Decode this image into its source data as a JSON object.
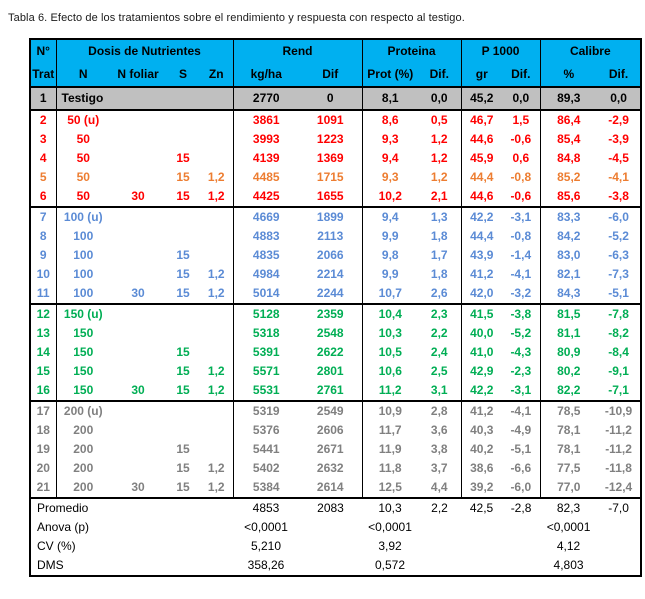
{
  "title": "Tabla 6. Efecto de los tratamientos sobre el rendimiento y respuesta con respecto al testigo.",
  "colors": {
    "header_bg": "#00B0F0",
    "header_text": "#000000",
    "border": "#000000",
    "testigo_bg": "#C0C0C0",
    "red": "#FF0000",
    "orange": "#ED7D31",
    "blue": "#5B8BD5",
    "green": "#00AE54",
    "gray": "#808080",
    "black": "#000000"
  },
  "header": {
    "col1_line1": "N°",
    "col1_line2": "Trat",
    "groups": [
      {
        "label": "Dosis de Nutrientes",
        "subs": [
          "N",
          "N foliar",
          "S",
          "Zn"
        ]
      },
      {
        "label": "Rend",
        "subs": [
          "kg/ha",
          "Dif"
        ]
      },
      {
        "label": "Proteina",
        "subs": [
          "Prot (%)",
          "Dif."
        ]
      },
      {
        "label": "P 1000",
        "subs": [
          "gr",
          "Dif."
        ]
      },
      {
        "label": "Calibre",
        "subs": [
          "%",
          "Dif."
        ]
      }
    ]
  },
  "rows": [
    {
      "trat": "1",
      "n": "Testigo",
      "nf": "",
      "s": "",
      "zn": "",
      "kgha": "2770",
      "dif": "0",
      "prot": "8,1",
      "pdif": "0,0",
      "gr": "45,2",
      "gdif": "0,0",
      "cal": "89,3",
      "cdif": "0,0",
      "color": "black",
      "testigo": true,
      "group_end": true
    },
    {
      "trat": "2",
      "n": "50 (u)",
      "nf": "",
      "s": "",
      "zn": "",
      "kgha": "3861",
      "dif": "1091",
      "prot": "8,6",
      "pdif": "0,5",
      "gr": "46,7",
      "gdif": "1,5",
      "cal": "86,4",
      "cdif": "-2,9",
      "color": "red",
      "testigo": false,
      "group_end": false
    },
    {
      "trat": "3",
      "n": "50",
      "nf": "",
      "s": "",
      "zn": "",
      "kgha": "3993",
      "dif": "1223",
      "prot": "9,3",
      "pdif": "1,2",
      "gr": "44,6",
      "gdif": "-0,6",
      "cal": "85,4",
      "cdif": "-3,9",
      "color": "red",
      "testigo": false,
      "group_end": false
    },
    {
      "trat": "4",
      "n": "50",
      "nf": "",
      "s": "15",
      "zn": "",
      "kgha": "4139",
      "dif": "1369",
      "prot": "9,4",
      "pdif": "1,2",
      "gr": "45,9",
      "gdif": "0,6",
      "cal": "84,8",
      "cdif": "-4,5",
      "color": "red",
      "testigo": false,
      "group_end": false
    },
    {
      "trat": "5",
      "n": "50",
      "nf": "",
      "s": "15",
      "zn": "1,2",
      "kgha": "4485",
      "dif": "1715",
      "prot": "9,3",
      "pdif": "1,2",
      "gr": "44,4",
      "gdif": "-0,8",
      "cal": "85,2",
      "cdif": "-4,1",
      "color": "orange",
      "testigo": false,
      "group_end": false
    },
    {
      "trat": "6",
      "n": "50",
      "nf": "30",
      "s": "15",
      "zn": "1,2",
      "kgha": "4425",
      "dif": "1655",
      "prot": "10,2",
      "pdif": "2,1",
      "gr": "44,6",
      "gdif": "-0,6",
      "cal": "85,6",
      "cdif": "-3,8",
      "color": "red",
      "testigo": false,
      "group_end": true
    },
    {
      "trat": "7",
      "n": "100 (u)",
      "nf": "",
      "s": "",
      "zn": "",
      "kgha": "4669",
      "dif": "1899",
      "prot": "9,4",
      "pdif": "1,3",
      "gr": "42,2",
      "gdif": "-3,1",
      "cal": "83,3",
      "cdif": "-6,0",
      "color": "blue",
      "testigo": false,
      "group_end": false
    },
    {
      "trat": "8",
      "n": "100",
      "nf": "",
      "s": "",
      "zn": "",
      "kgha": "4883",
      "dif": "2113",
      "prot": "9,9",
      "pdif": "1,8",
      "gr": "44,4",
      "gdif": "-0,8",
      "cal": "84,2",
      "cdif": "-5,2",
      "color": "blue",
      "testigo": false,
      "group_end": false
    },
    {
      "trat": "9",
      "n": "100",
      "nf": "",
      "s": "15",
      "zn": "",
      "kgha": "4835",
      "dif": "2066",
      "prot": "9,8",
      "pdif": "1,7",
      "gr": "43,9",
      "gdif": "-1,4",
      "cal": "83,0",
      "cdif": "-6,3",
      "color": "blue",
      "testigo": false,
      "group_end": false
    },
    {
      "trat": "10",
      "n": "100",
      "nf": "",
      "s": "15",
      "zn": "1,2",
      "kgha": "4984",
      "dif": "2214",
      "prot": "9,9",
      "pdif": "1,8",
      "gr": "41,2",
      "gdif": "-4,1",
      "cal": "82,1",
      "cdif": "-7,3",
      "color": "blue",
      "testigo": false,
      "group_end": false
    },
    {
      "trat": "11",
      "n": "100",
      "nf": "30",
      "s": "15",
      "zn": "1,2",
      "kgha": "5014",
      "dif": "2244",
      "prot": "10,7",
      "pdif": "2,6",
      "gr": "42,0",
      "gdif": "-3,2",
      "cal": "84,3",
      "cdif": "-5,1",
      "color": "blue",
      "testigo": false,
      "group_end": true
    },
    {
      "trat": "12",
      "n": "150 (u)",
      "nf": "",
      "s": "",
      "zn": "",
      "kgha": "5128",
      "dif": "2359",
      "prot": "10,4",
      "pdif": "2,3",
      "gr": "41,5",
      "gdif": "-3,8",
      "cal": "81,5",
      "cdif": "-7,8",
      "color": "green",
      "testigo": false,
      "group_end": false
    },
    {
      "trat": "13",
      "n": "150",
      "nf": "",
      "s": "",
      "zn": "",
      "kgha": "5318",
      "dif": "2548",
      "prot": "10,3",
      "pdif": "2,2",
      "gr": "40,0",
      "gdif": "-5,2",
      "cal": "81,1",
      "cdif": "-8,2",
      "color": "green",
      "testigo": false,
      "group_end": false
    },
    {
      "trat": "14",
      "n": "150",
      "nf": "",
      "s": "15",
      "zn": "",
      "kgha": "5391",
      "dif": "2622",
      "prot": "10,5",
      "pdif": "2,4",
      "gr": "41,0",
      "gdif": "-4,3",
      "cal": "80,9",
      "cdif": "-8,4",
      "color": "green",
      "testigo": false,
      "group_end": false
    },
    {
      "trat": "15",
      "n": "150",
      "nf": "",
      "s": "15",
      "zn": "1,2",
      "kgha": "5571",
      "dif": "2801",
      "prot": "10,6",
      "pdif": "2,5",
      "gr": "42,9",
      "gdif": "-2,3",
      "cal": "80,2",
      "cdif": "-9,1",
      "color": "green",
      "testigo": false,
      "group_end": false
    },
    {
      "trat": "16",
      "n": "150",
      "nf": "30",
      "s": "15",
      "zn": "1,2",
      "kgha": "5531",
      "dif": "2761",
      "prot": "11,2",
      "pdif": "3,1",
      "gr": "42,2",
      "gdif": "-3,1",
      "cal": "82,2",
      "cdif": "-7,1",
      "color": "green",
      "testigo": false,
      "group_end": true
    },
    {
      "trat": "17",
      "n": "200 (u)",
      "nf": "",
      "s": "",
      "zn": "",
      "kgha": "5319",
      "dif": "2549",
      "prot": "10,9",
      "pdif": "2,8",
      "gr": "41,2",
      "gdif": "-4,1",
      "cal": "78,5",
      "cdif": "-10,9",
      "color": "gray",
      "testigo": false,
      "group_end": false
    },
    {
      "trat": "18",
      "n": "200",
      "nf": "",
      "s": "",
      "zn": "",
      "kgha": "5376",
      "dif": "2606",
      "prot": "11,7",
      "pdif": "3,6",
      "gr": "40,3",
      "gdif": "-4,9",
      "cal": "78,1",
      "cdif": "-11,2",
      "color": "gray",
      "testigo": false,
      "group_end": false
    },
    {
      "trat": "19",
      "n": "200",
      "nf": "",
      "s": "15",
      "zn": "",
      "kgha": "5441",
      "dif": "2671",
      "prot": "11,9",
      "pdif": "3,8",
      "gr": "40,2",
      "gdif": "-5,1",
      "cal": "78,1",
      "cdif": "-11,2",
      "color": "gray",
      "testigo": false,
      "group_end": false
    },
    {
      "trat": "20",
      "n": "200",
      "nf": "",
      "s": "15",
      "zn": "1,2",
      "kgha": "5402",
      "dif": "2632",
      "prot": "11,8",
      "pdif": "3,7",
      "gr": "38,6",
      "gdif": "-6,6",
      "cal": "77,5",
      "cdif": "-11,8",
      "color": "gray",
      "testigo": false,
      "group_end": false
    },
    {
      "trat": "21",
      "n": "200",
      "nf": "30",
      "s": "15",
      "zn": "1,2",
      "kgha": "5384",
      "dif": "2614",
      "prot": "12,5",
      "pdif": "4,4",
      "gr": "39,2",
      "gdif": "-6,0",
      "cal": "77,0",
      "cdif": "-12,4",
      "color": "gray",
      "testigo": false,
      "group_end": true
    }
  ],
  "summary": [
    {
      "label": "Promedio",
      "kgha": "4853",
      "dif": "2083",
      "prot": "10,3",
      "pdif": "2,2",
      "gr": "42,5",
      "gdif": "-2,8",
      "cal": "82,3",
      "cdif": "-7,0"
    },
    {
      "label": "Anova (p)",
      "kgha": "<0,0001",
      "dif": "",
      "prot": "<0,0001",
      "pdif": "",
      "gr": "",
      "gdif": "",
      "cal": "<0,0001",
      "cdif": ""
    },
    {
      "label": "CV (%)",
      "kgha": "5,210",
      "dif": "",
      "prot": "3,92",
      "pdif": "",
      "gr": "",
      "gdif": "",
      "cal": "4,12",
      "cdif": ""
    },
    {
      "label": "DMS",
      "kgha": "358,26",
      "dif": "",
      "prot": "0,572",
      "pdif": "",
      "gr": "",
      "gdif": "",
      "cal": "4,803",
      "cdif": ""
    }
  ]
}
